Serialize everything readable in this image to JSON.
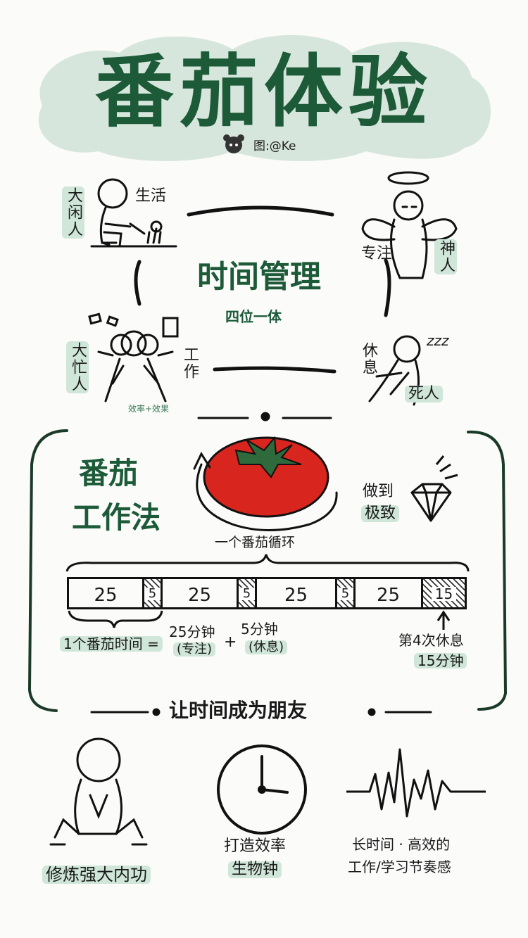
{
  "title": "番茄体验",
  "credit": "图:@Ke",
  "time_mgmt": {
    "title": "时间管理",
    "subtitle": "四位一体",
    "top_left": {
      "role": "大闲人",
      "activity": "生活"
    },
    "top_right": {
      "role": "神人",
      "activity": "专注"
    },
    "bottom_left": {
      "role": "大忙人",
      "activity": "工作",
      "note": "效率+效果"
    },
    "bottom_right": {
      "role": "死人",
      "activity": "休息",
      "sleep": "zzz"
    }
  },
  "pomodoro": {
    "title_line1": "番茄",
    "title_line2": "工作法",
    "cycle_label": "一个番茄循环",
    "extreme_line1": "做到",
    "extreme_line2": "极致",
    "bar": [
      "25",
      "5",
      "25",
      "5",
      "25",
      "5",
      "25",
      "15"
    ],
    "equation": {
      "lhs": "1个番茄时间 =",
      "work": "25分钟",
      "work_note": "(专注)",
      "plus": "+",
      "rest": "5分钟",
      "rest_note": "(休息)"
    },
    "long_break_line1": "第4次休息",
    "long_break_line2": "15分钟"
  },
  "friends": "让时间成为朋友",
  "bottom": {
    "left": "修炼强大内功",
    "middle_line1": "打造效率",
    "middle_line2": "生物钟",
    "right_line1": "长时间 · 高效的",
    "right_line2": "工作/学习节奏感"
  },
  "colors": {
    "accent_green": "#1c5a38",
    "highlight": "#cfe6d9",
    "tomato": "#d8261f"
  }
}
